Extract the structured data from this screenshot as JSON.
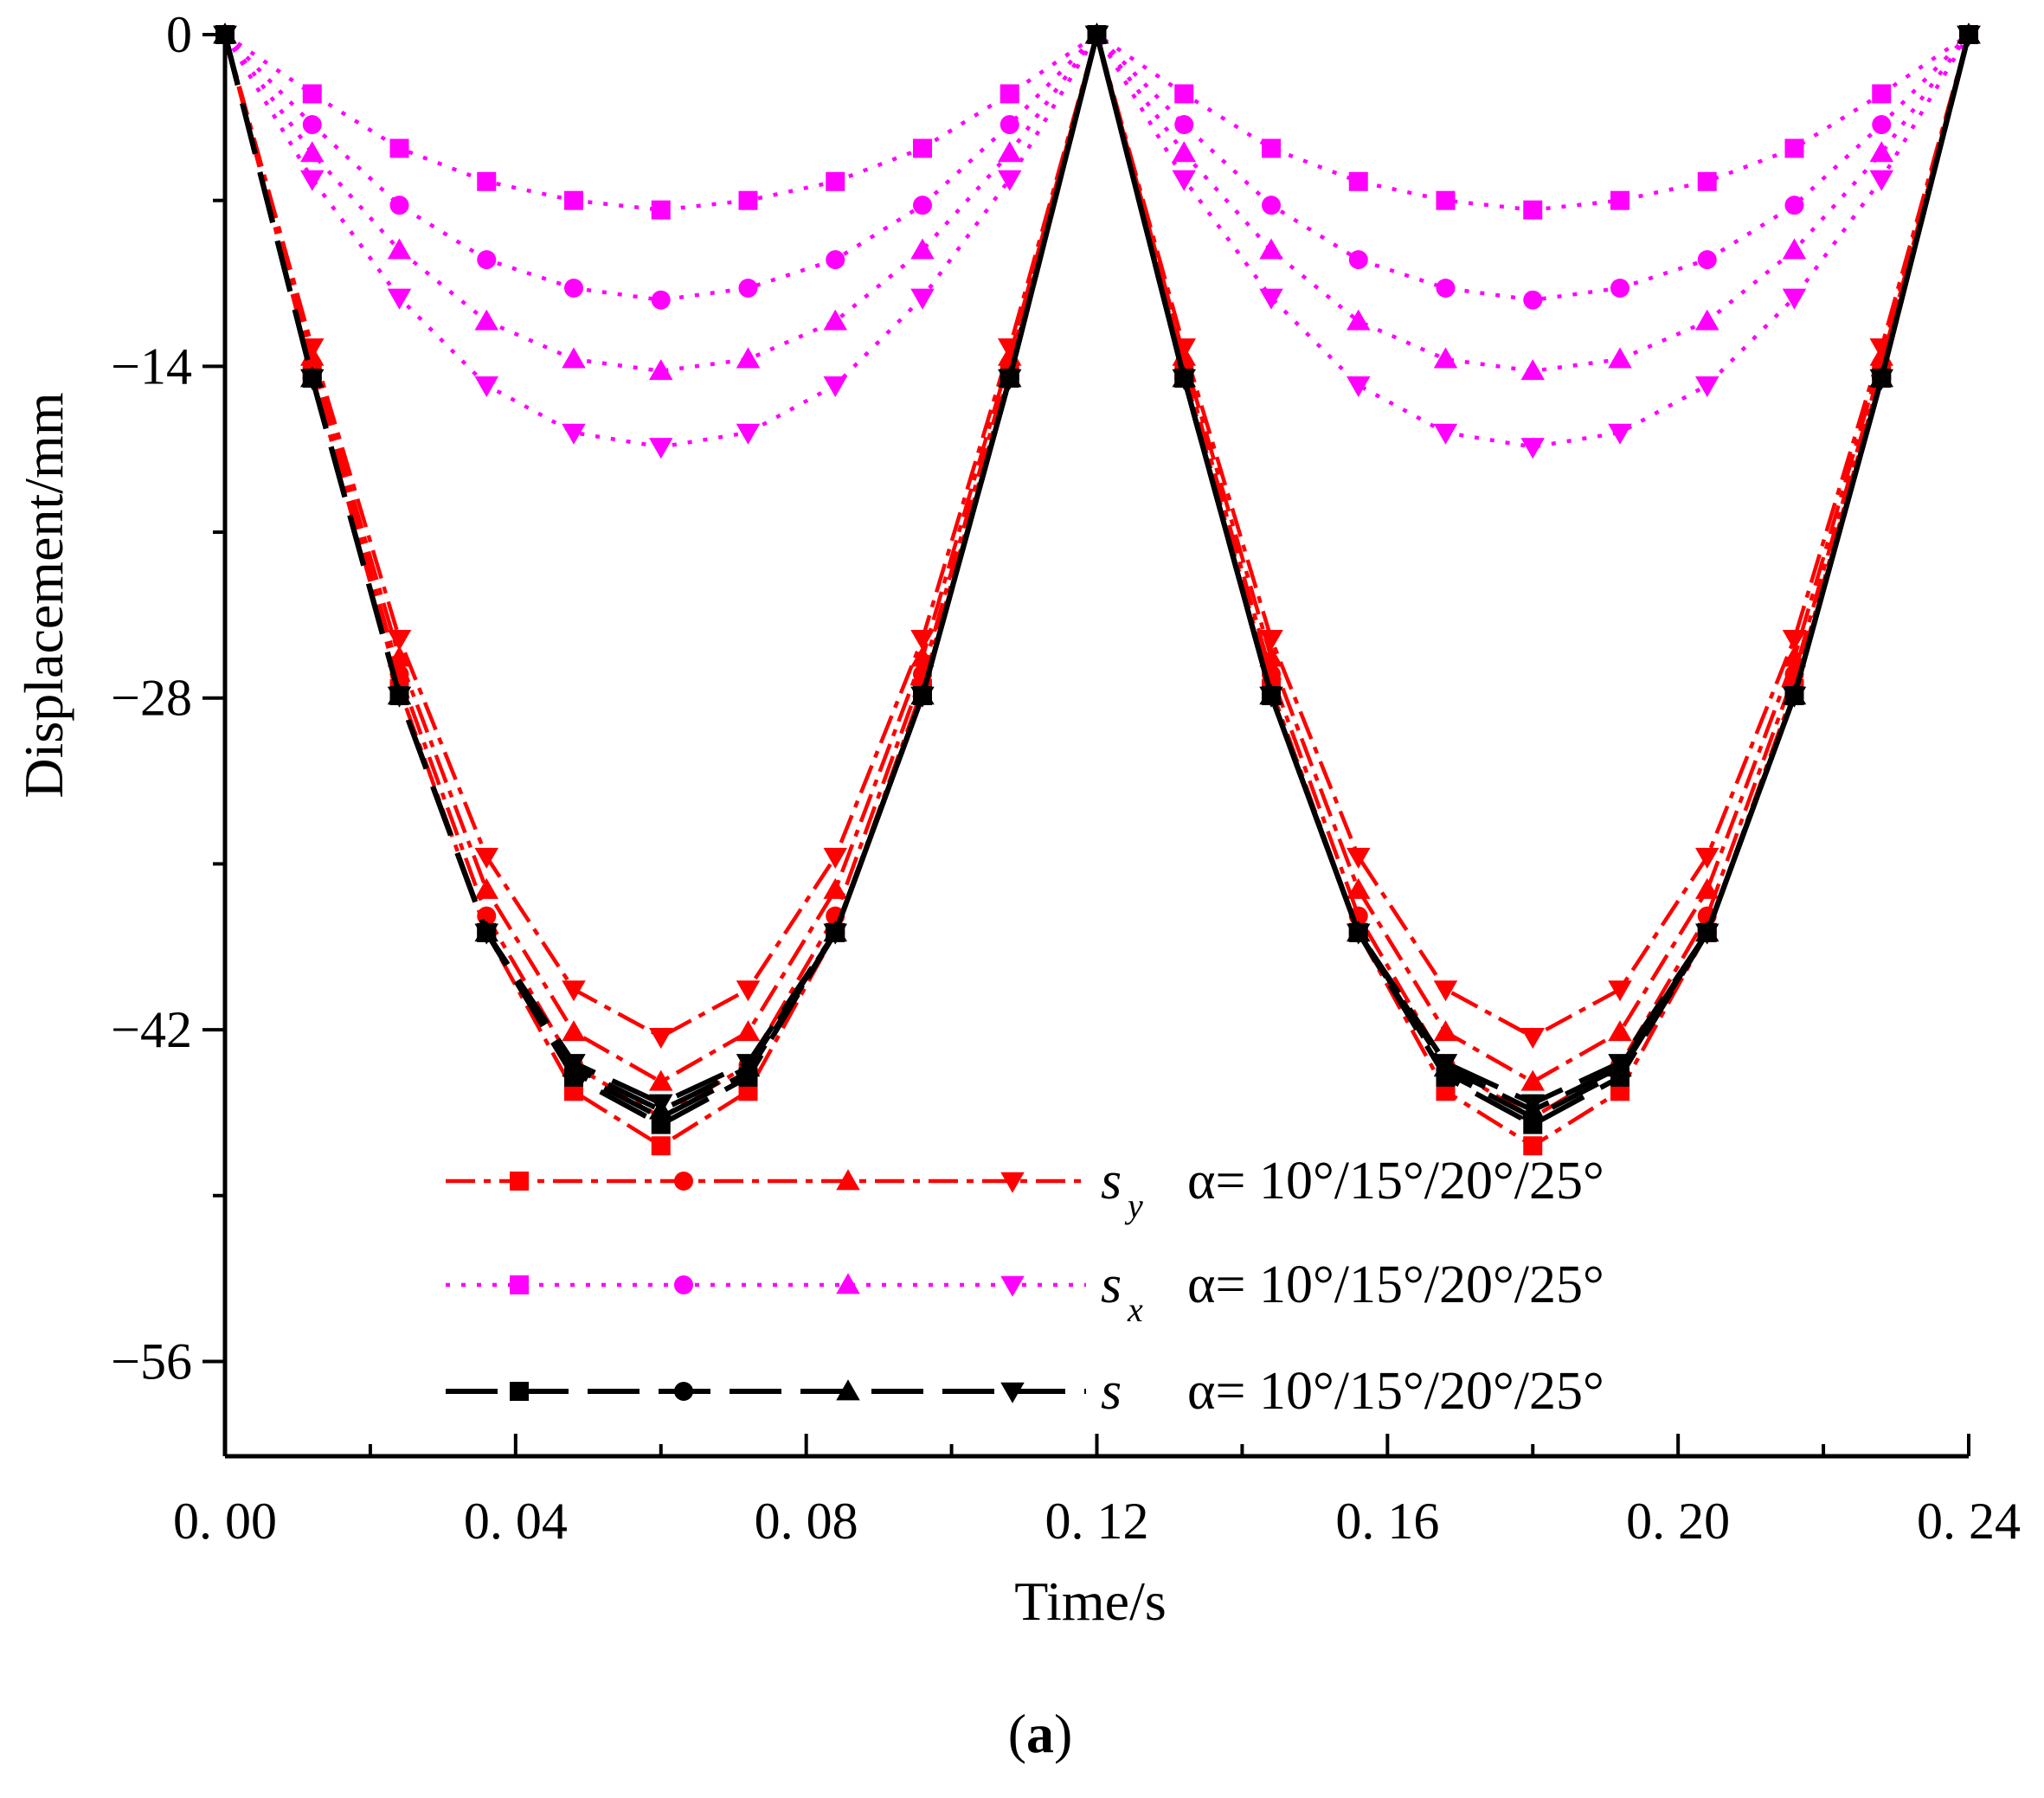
{
  "chart_data": {
    "type": "line",
    "xlabel": "Time/s",
    "ylabel": "Displacement/mm",
    "xlim": [
      0,
      0.24
    ],
    "ylim": [
      -60,
      0
    ],
    "xticks": [
      0.0,
      0.04,
      0.08,
      0.12,
      0.16,
      0.2,
      0.24
    ],
    "xtick_labels": [
      "0. 00",
      "0. 04",
      "0. 08",
      "0. 12",
      "0. 16",
      "0. 20",
      "0. 24"
    ],
    "yticks": [
      0,
      -14,
      -28,
      -42,
      -56
    ],
    "ytick_labels": [
      "0",
      "−14",
      "−28",
      "−42",
      "−56"
    ],
    "caption_open": "(",
    "caption_letter": "a",
    "caption_close": ")",
    "legend": [
      {
        "symbol": "s",
        "subscript": "y",
        "text": "α= 10°/15°/20°/25°",
        "color": "#ff0000",
        "style": "dashdot"
      },
      {
        "symbol": "s",
        "subscript": "x",
        "text": "α= 10°/15°/20°/25°",
        "color": "#ff00ff",
        "style": "dotted"
      },
      {
        "symbol": "s",
        "subscript": "",
        "text": "α= 10°/15°/20°/25°",
        "color": "#000000",
        "style": "longdash"
      }
    ],
    "x": [
      0.0,
      0.012,
      0.024,
      0.036,
      0.048,
      0.06,
      0.072,
      0.084,
      0.096,
      0.108,
      0.12,
      0.132,
      0.144,
      0.156,
      0.168,
      0.18,
      0.192,
      0.204,
      0.216,
      0.228,
      0.24
    ],
    "series": [
      {
        "name": "s_y α=10°",
        "group": "sy",
        "color": "#ff0000",
        "marker": "square",
        "values": [
          0,
          -14.2,
          -27.6,
          -37.9,
          -44.6,
          -46.9,
          -44.6,
          -37.9,
          -27.6,
          -14.2,
          0,
          -14.2,
          -27.6,
          -37.9,
          -44.6,
          -46.9,
          -44.6,
          -37.9,
          -27.6,
          -14.2,
          0
        ]
      },
      {
        "name": "s_y α=15°",
        "group": "sy",
        "color": "#ff0000",
        "marker": "circle",
        "values": [
          0,
          -13.9,
          -27.0,
          -37.2,
          -43.5,
          -45.7,
          -43.5,
          -37.2,
          -27.0,
          -13.9,
          0,
          -13.9,
          -27.0,
          -37.2,
          -43.5,
          -45.7,
          -43.5,
          -37.2,
          -27.0,
          -13.9,
          0
        ]
      },
      {
        "name": "s_y α=20°",
        "group": "sy",
        "color": "#ff0000",
        "marker": "triangle-up",
        "values": [
          0,
          -13.6,
          -26.3,
          -36.1,
          -42.1,
          -44.2,
          -42.1,
          -36.1,
          -26.3,
          -13.6,
          0,
          -13.6,
          -26.3,
          -36.1,
          -42.1,
          -44.2,
          -42.1,
          -36.1,
          -26.3,
          -13.6,
          0
        ]
      },
      {
        "name": "s_y α=25°",
        "group": "sy",
        "color": "#ff0000",
        "marker": "triangle-down",
        "values": [
          0,
          -13.2,
          -25.5,
          -34.7,
          -40.3,
          -42.3,
          -40.3,
          -34.7,
          -25.5,
          -13.2,
          0,
          -13.2,
          -25.5,
          -34.7,
          -40.3,
          -42.3,
          -40.3,
          -34.7,
          -25.5,
          -13.2,
          0
        ]
      },
      {
        "name": "s_x α=10°",
        "group": "sx",
        "color": "#ff00ff",
        "marker": "square",
        "values": [
          0,
          -2.5,
          -4.8,
          -6.2,
          -7.0,
          -7.4,
          -7.0,
          -6.2,
          -4.8,
          -2.5,
          0,
          -2.5,
          -4.8,
          -6.2,
          -7.0,
          -7.4,
          -7.0,
          -6.2,
          -4.8,
          -2.5,
          0
        ]
      },
      {
        "name": "s_x α=15°",
        "group": "sx",
        "color": "#ff00ff",
        "marker": "circle",
        "values": [
          0,
          -3.8,
          -7.2,
          -9.5,
          -10.7,
          -11.2,
          -10.7,
          -9.5,
          -7.2,
          -3.8,
          0,
          -3.8,
          -7.2,
          -9.5,
          -10.7,
          -11.2,
          -10.7,
          -9.5,
          -7.2,
          -3.8,
          0
        ]
      },
      {
        "name": "s_x α=20°",
        "group": "sx",
        "color": "#ff00ff",
        "marker": "triangle-up",
        "values": [
          0,
          -5.0,
          -9.1,
          -12.1,
          -13.7,
          -14.2,
          -13.7,
          -12.1,
          -9.1,
          -5.0,
          0,
          -5.0,
          -9.1,
          -12.1,
          -13.7,
          -14.2,
          -13.7,
          -12.1,
          -9.1,
          -5.0,
          0
        ]
      },
      {
        "name": "s_x α=25°",
        "group": "sx",
        "color": "#ff00ff",
        "marker": "triangle-down",
        "values": [
          0,
          -6.1,
          -11.1,
          -14.8,
          -16.8,
          -17.4,
          -16.8,
          -14.8,
          -11.1,
          -6.1,
          0,
          -6.1,
          -11.1,
          -14.8,
          -16.8,
          -17.4,
          -16.8,
          -14.8,
          -11.1,
          -6.1,
          0
        ]
      },
      {
        "name": "s α=10°",
        "group": "s",
        "color": "#000000",
        "marker": "square",
        "values": [
          0,
          -14.5,
          -27.9,
          -37.9,
          -44.0,
          -46.0,
          -44.0,
          -37.9,
          -27.9,
          -14.5,
          0,
          -14.5,
          -27.9,
          -37.9,
          -44.0,
          -46.0,
          -44.0,
          -37.9,
          -27.9,
          -14.5,
          0
        ]
      },
      {
        "name": "s α=15°",
        "group": "s",
        "color": "#000000",
        "marker": "circle",
        "values": [
          0,
          -14.5,
          -27.9,
          -37.9,
          -43.8,
          -45.7,
          -43.8,
          -37.9,
          -27.9,
          -14.5,
          0,
          -14.5,
          -27.9,
          -37.9,
          -43.8,
          -45.7,
          -43.8,
          -37.9,
          -27.9,
          -14.5,
          0
        ]
      },
      {
        "name": "s α=20°",
        "group": "s",
        "color": "#000000",
        "marker": "triangle-up",
        "values": [
          0,
          -14.5,
          -27.9,
          -37.9,
          -43.6,
          -45.4,
          -43.6,
          -37.9,
          -27.9,
          -14.5,
          0,
          -14.5,
          -27.9,
          -37.9,
          -43.6,
          -45.4,
          -43.6,
          -37.9,
          -27.9,
          -14.5,
          0
        ]
      },
      {
        "name": "s α=25°",
        "group": "s",
        "color": "#000000",
        "marker": "triangle-down",
        "values": [
          0,
          -14.5,
          -27.9,
          -37.9,
          -43.4,
          -45.1,
          -43.4,
          -37.9,
          -27.9,
          -14.5,
          0,
          -14.5,
          -27.9,
          -37.9,
          -43.4,
          -45.1,
          -43.4,
          -37.9,
          -27.9,
          -14.5,
          0
        ]
      }
    ]
  }
}
